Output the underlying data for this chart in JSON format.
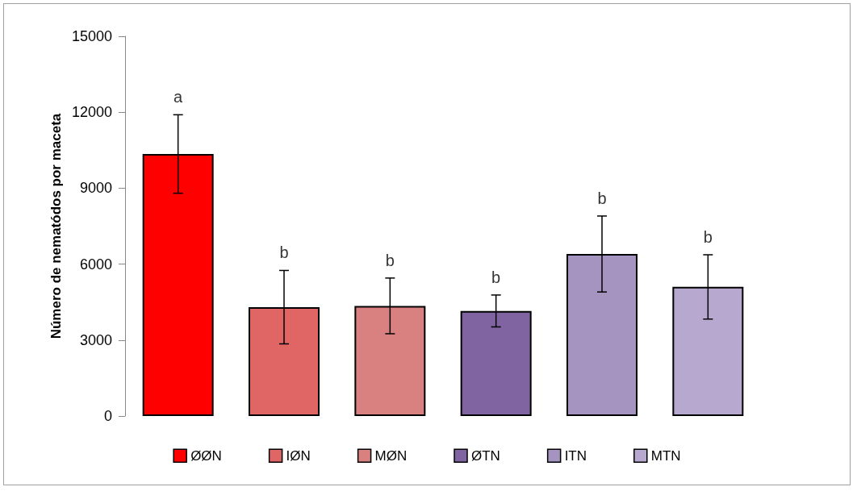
{
  "chart_data": {
    "type": "bar",
    "ylabel": "Número de nematódos por maceta",
    "categories": [
      null,
      null,
      null,
      null,
      null,
      null
    ],
    "stacked": true,
    "series": [
      {
        "name": "ØØN",
        "color": "#ff0000",
        "values": [
          10350,
          null,
          null,
          null,
          null,
          null
        ],
        "errors": [
          1550,
          null,
          null,
          null,
          null,
          null
        ]
      },
      {
        "name": "IØN",
        "color": "#e06666",
        "values": [
          null,
          4300,
          null,
          null,
          null,
          null
        ],
        "errors": [
          null,
          1450,
          null,
          null,
          null,
          null
        ]
      },
      {
        "name": "MØN",
        "color": "#d98080",
        "values": [
          null,
          null,
          4350,
          null,
          null,
          null
        ],
        "errors": [
          null,
          null,
          1100,
          null,
          null,
          null
        ]
      },
      {
        "name": "ØTN",
        "color": "#8064a2",
        "values": [
          null,
          null,
          null,
          4150,
          null,
          null
        ],
        "errors": [
          null,
          null,
          null,
          630,
          null,
          null
        ]
      },
      {
        "name": "ITN",
        "color": "#a594c0",
        "values": [
          null,
          null,
          null,
          null,
          6400,
          null
        ],
        "errors": [
          null,
          null,
          null,
          null,
          1500,
          null
        ]
      },
      {
        "name": "MTN",
        "color": "#b7a8cf",
        "values": [
          null,
          null,
          null,
          null,
          null,
          5100
        ],
        "errors": [
          null,
          null,
          null,
          null,
          null,
          1270
        ]
      }
    ],
    "annotations": [
      "a",
      "b",
      "b",
      "b",
      "b",
      "b"
    ],
    "ylim": [
      0,
      15000
    ],
    "yticks": [
      0,
      3000,
      6000,
      9000,
      12000,
      15000
    ],
    "grid": false,
    "legend": "bottom"
  }
}
